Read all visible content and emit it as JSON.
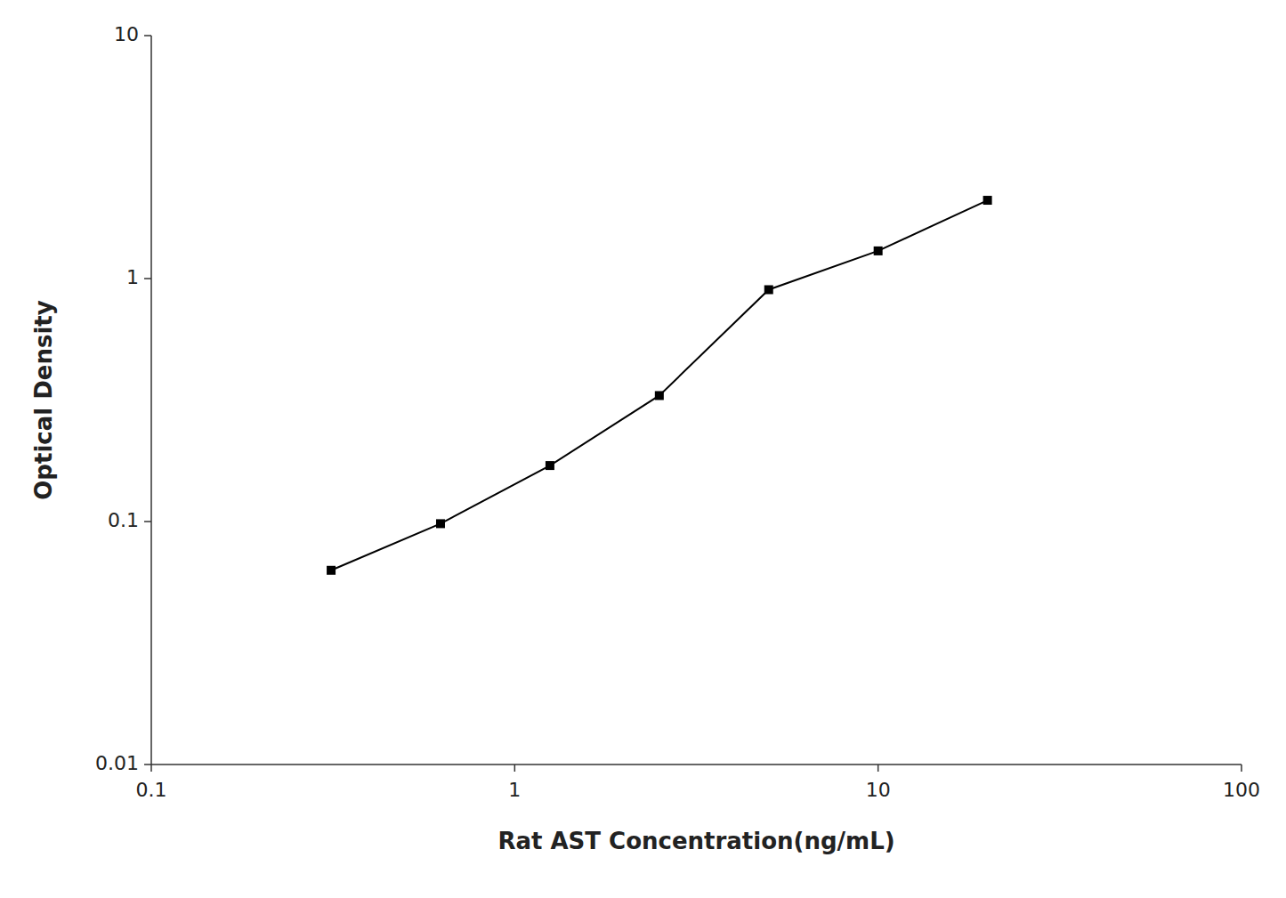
{
  "chart_data": {
    "type": "line",
    "x": [
      0.3125,
      0.625,
      1.25,
      2.5,
      5.0,
      10.0,
      20.0
    ],
    "values": [
      0.063,
      0.098,
      0.17,
      0.33,
      0.9,
      1.3,
      2.1
    ],
    "xlabel": "Rat AST Concentration(ng/mL)",
    "ylabel": "Optical Density",
    "xlim": [
      0.1,
      100
    ],
    "ylim": [
      0.01,
      10
    ],
    "xticks": [
      0.1,
      1,
      10,
      100
    ],
    "yticks": [
      0.01,
      0.1,
      1,
      10
    ],
    "log": true,
    "grid": false,
    "color": "#000000",
    "marker": "square"
  }
}
